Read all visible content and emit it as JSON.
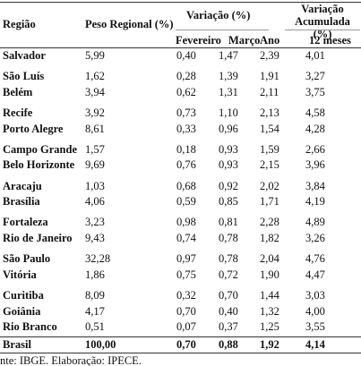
{
  "table": {
    "header": {
      "region": "Região",
      "weight": "Peso Regional (%)",
      "variation": "Variação (%)",
      "accumulated": "Variação Acumulada (%)",
      "february": "Fevereiro",
      "march": "Março",
      "year": "Ano",
      "months12": "12 meses"
    },
    "groups": [
      {
        "rows": [
          [
            "Salvador",
            "5,99",
            "0,40",
            "1,47",
            "2,39",
            "4,01"
          ]
        ]
      },
      {
        "rows": [
          [
            "São Luís",
            "1,62",
            "0,28",
            "1,39",
            "1,91",
            "3,27"
          ],
          [
            "Belém",
            "3,94",
            "0,62",
            "1,31",
            "2,11",
            "3,75"
          ]
        ]
      },
      {
        "rows": [
          [
            "Recife",
            "3,92",
            "0,73",
            "1,10",
            "2,13",
            "4,58"
          ],
          [
            "Porto Alegre",
            "8,61",
            "0,33",
            "0,96",
            "1,54",
            "4,28"
          ]
        ]
      },
      {
        "rows": [
          [
            "Campo Grande",
            "1,57",
            "0,18",
            "0,93",
            "1,59",
            "2,66"
          ],
          [
            "Belo Horizonte",
            "9,69",
            "0,76",
            "0,93",
            "2,15",
            "3,96"
          ]
        ]
      },
      {
        "rows": [
          [
            "Aracaju",
            "1,03",
            "0,68",
            "0,92",
            "2,02",
            "3,84"
          ],
          [
            "Brasília",
            "4,06",
            "0,59",
            "0,85",
            "1,71",
            "4,19"
          ]
        ]
      },
      {
        "rows": [
          [
            "Fortaleza",
            "3,23",
            "0,98",
            "0,81",
            "2,28",
            "4,89"
          ],
          [
            "Rio de Janeiro",
            "9,43",
            "0,74",
            "0,78",
            "1,82",
            "3,26"
          ]
        ]
      },
      {
        "rows": [
          [
            "São Paulo",
            "32,28",
            "0,97",
            "0,78",
            "2,04",
            "4,76"
          ],
          [
            "Vitória",
            "1,86",
            "0,75",
            "0,72",
            "1,90",
            "4,47"
          ]
        ]
      },
      {
        "rows": [
          [
            "Curitiba",
            "8,09",
            "0,32",
            "0,70",
            "1,44",
            "3,03"
          ],
          [
            "Goiânia",
            "4,17",
            "0,70",
            "0,40",
            "1,32",
            "4,00"
          ],
          [
            "Rio Branco",
            "0,51",
            "0,07",
            "0,37",
            "1,25",
            "3,55"
          ]
        ]
      }
    ],
    "total": [
      "Brasil",
      "100,00",
      "0,70",
      "0,88",
      "1,92",
      "4,14"
    ],
    "source": "nte: IBGE. Elaboração: IPECE."
  }
}
